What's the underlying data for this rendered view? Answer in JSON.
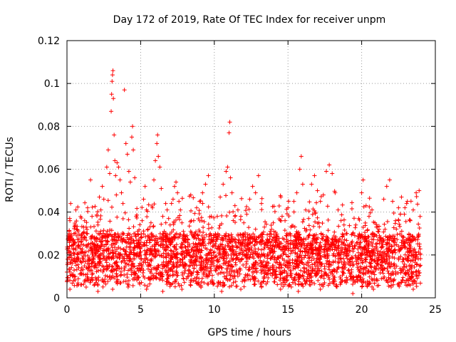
{
  "chart_data": {
    "type": "scatter",
    "title": "Day 172 of 2019, Rate Of TEC Index for receiver unpm",
    "xlabel": "GPS time / hours",
    "ylabel": "ROTI / TECUs",
    "xlim": [
      0,
      25
    ],
    "ylim": [
      0,
      0.12
    ],
    "x_ticks": [
      "0",
      "5",
      "10",
      "15",
      "20",
      "25"
    ],
    "y_ticks": [
      "0",
      "0.02",
      "0.04",
      "0.06",
      "0.08",
      "0.1",
      "0.12"
    ],
    "grid": true,
    "legend": "none",
    "marker": "plus",
    "series": [
      {
        "color": "#ff0000",
        "points": [
          [
            0.0,
            0.012
          ],
          [
            0.05,
            0.018
          ],
          [
            0.1,
            0.023
          ],
          [
            0.15,
            0.031
          ],
          [
            0.2,
            0.036
          ],
          [
            0.25,
            0.044
          ],
          [
            0.3,
            0.029
          ],
          [
            0.35,
            0.016
          ],
          [
            0.4,
            0.011
          ],
          [
            0.45,
            0.021
          ],
          [
            0.5,
            0.026
          ],
          [
            0.55,
            0.034
          ],
          [
            0.6,
            0.041
          ],
          [
            0.65,
            0.032
          ],
          [
            0.7,
            0.019
          ],
          [
            0.8,
            0.014
          ],
          [
            0.9,
            0.023
          ],
          [
            1.0,
            0.028
          ],
          [
            1.1,
            0.021
          ],
          [
            1.2,
            0.036
          ],
          [
            1.3,
            0.033
          ],
          [
            1.4,
            0.042
          ],
          [
            1.5,
            0.018
          ],
          [
            1.6,
            0.055
          ],
          [
            1.7,
            0.038
          ],
          [
            1.8,
            0.024
          ],
          [
            1.9,
            0.015
          ],
          [
            2.0,
            0.028
          ],
          [
            2.1,
            0.034
          ],
          [
            2.2,
            0.047
          ],
          [
            2.3,
            0.041
          ],
          [
            2.4,
            0.052
          ],
          [
            2.5,
            0.046
          ],
          [
            2.6,
            0.029
          ],
          [
            2.7,
            0.061
          ],
          [
            2.8,
            0.069
          ],
          [
            2.9,
            0.058
          ],
          [
            3.0,
            0.087
          ],
          [
            3.03,
            0.095
          ],
          [
            3.06,
            0.101
          ],
          [
            3.09,
            0.104
          ],
          [
            3.12,
            0.106
          ],
          [
            3.15,
            0.093
          ],
          [
            3.2,
            0.076
          ],
          [
            3.25,
            0.064
          ],
          [
            3.3,
            0.057
          ],
          [
            3.35,
            0.048
          ],
          [
            3.4,
            0.063
          ],
          [
            3.5,
            0.061
          ],
          [
            3.6,
            0.055
          ],
          [
            3.7,
            0.049
          ],
          [
            3.8,
            0.044
          ],
          [
            3.9,
            0.097
          ],
          [
            4.0,
            0.072
          ],
          [
            4.1,
            0.067
          ],
          [
            4.2,
            0.059
          ],
          [
            4.3,
            0.054
          ],
          [
            4.4,
            0.075
          ],
          [
            4.45,
            0.08
          ],
          [
            4.5,
            0.069
          ],
          [
            4.6,
            0.056
          ],
          [
            4.7,
            0.038
          ],
          [
            4.8,
            0.031
          ],
          [
            4.9,
            0.025
          ],
          [
            5.0,
            0.028
          ],
          [
            5.1,
            0.036
          ],
          [
            5.2,
            0.046
          ],
          [
            5.3,
            0.052
          ],
          [
            5.4,
            0.041
          ],
          [
            5.5,
            0.032
          ],
          [
            5.6,
            0.028
          ],
          [
            5.7,
            0.035
          ],
          [
            5.8,
            0.042
          ],
          [
            5.9,
            0.055
          ],
          [
            6.0,
            0.064
          ],
          [
            6.1,
            0.072
          ],
          [
            6.15,
            0.076
          ],
          [
            6.2,
            0.066
          ],
          [
            6.3,
            0.061
          ],
          [
            6.4,
            0.051
          ],
          [
            6.5,
            0.038
          ],
          [
            6.6,
            0.031
          ],
          [
            6.7,
            0.044
          ],
          [
            6.8,
            0.041
          ],
          [
            6.9,
            0.037
          ],
          [
            7.0,
            0.034
          ],
          [
            7.1,
            0.028
          ],
          [
            7.2,
            0.046
          ],
          [
            7.3,
            0.052
          ],
          [
            7.4,
            0.054
          ],
          [
            7.5,
            0.049
          ],
          [
            7.6,
            0.045
          ],
          [
            7.7,
            0.041
          ],
          [
            7.8,
            0.035
          ],
          [
            7.9,
            0.031
          ],
          [
            8.0,
            0.026
          ],
          [
            8.2,
            0.024
          ],
          [
            8.4,
            0.031
          ],
          [
            8.6,
            0.036
          ],
          [
            8.8,
            0.042
          ],
          [
            9.0,
            0.045
          ],
          [
            9.2,
            0.049
          ],
          [
            9.4,
            0.053
          ],
          [
            9.6,
            0.057
          ],
          [
            9.8,
            0.038
          ],
          [
            10.0,
            0.029
          ],
          [
            10.2,
            0.038
          ],
          [
            10.4,
            0.047
          ],
          [
            10.6,
            0.053
          ],
          [
            10.8,
            0.059
          ],
          [
            10.9,
            0.061
          ],
          [
            11.0,
            0.077
          ],
          [
            11.05,
            0.082
          ],
          [
            11.1,
            0.056
          ],
          [
            11.2,
            0.049
          ],
          [
            11.4,
            0.043
          ],
          [
            11.6,
            0.041
          ],
          [
            11.8,
            0.038
          ],
          [
            12.0,
            0.035
          ],
          [
            12.2,
            0.039
          ],
          [
            12.4,
            0.046
          ],
          [
            12.6,
            0.052
          ],
          [
            12.8,
            0.049
          ],
          [
            13.0,
            0.057
          ],
          [
            13.2,
            0.044
          ],
          [
            13.4,
            0.033
          ],
          [
            13.6,
            0.026
          ],
          [
            13.8,
            0.031
          ],
          [
            14.0,
            0.035
          ],
          [
            14.2,
            0.029
          ],
          [
            14.4,
            0.024
          ],
          [
            14.6,
            0.038
          ],
          [
            14.8,
            0.036
          ],
          [
            15.0,
            0.042
          ],
          [
            15.2,
            0.033
          ],
          [
            15.4,
            0.045
          ],
          [
            15.6,
            0.049
          ],
          [
            15.8,
            0.06
          ],
          [
            15.9,
            0.066
          ],
          [
            16.0,
            0.053
          ],
          [
            16.2,
            0.041
          ],
          [
            16.4,
            0.037
          ],
          [
            16.6,
            0.053
          ],
          [
            16.8,
            0.057
          ],
          [
            17.0,
            0.05
          ],
          [
            17.2,
            0.045
          ],
          [
            17.4,
            0.048
          ],
          [
            17.6,
            0.059
          ],
          [
            17.8,
            0.062
          ],
          [
            18.0,
            0.058
          ],
          [
            18.2,
            0.049
          ],
          [
            18.4,
            0.041
          ],
          [
            18.6,
            0.036
          ],
          [
            18.8,
            0.034
          ],
          [
            19.0,
            0.03
          ],
          [
            19.2,
            0.024
          ],
          [
            19.4,
            0.015
          ],
          [
            19.6,
            0.034
          ],
          [
            19.8,
            0.037
          ],
          [
            20.0,
            0.049
          ],
          [
            20.1,
            0.055
          ],
          [
            20.3,
            0.043
          ],
          [
            20.5,
            0.038
          ],
          [
            20.7,
            0.041
          ],
          [
            20.9,
            0.035
          ],
          [
            21.1,
            0.031
          ],
          [
            21.3,
            0.028
          ],
          [
            21.5,
            0.046
          ],
          [
            21.7,
            0.052
          ],
          [
            21.9,
            0.055
          ],
          [
            22.1,
            0.045
          ],
          [
            22.3,
            0.036
          ],
          [
            22.5,
            0.042
          ],
          [
            22.7,
            0.047
          ],
          [
            22.9,
            0.039
          ],
          [
            23.1,
            0.045
          ],
          [
            23.3,
            0.036
          ],
          [
            23.5,
            0.041
          ],
          [
            23.7,
            0.049
          ],
          [
            23.9,
            0.05
          ],
          [
            0.2,
            0.004
          ],
          [
            1.3,
            0.005
          ],
          [
            2.1,
            0.003
          ],
          [
            3.1,
            0.004
          ],
          [
            4.2,
            0.006
          ],
          [
            5.4,
            0.004
          ],
          [
            6.5,
            0.003
          ],
          [
            7.8,
            0.004
          ],
          [
            9.1,
            0.005
          ],
          [
            10.5,
            0.003
          ],
          [
            11.8,
            0.004
          ],
          [
            13.2,
            0.005
          ],
          [
            14.5,
            0.004
          ],
          [
            15.7,
            0.003
          ],
          [
            17.2,
            0.004
          ],
          [
            18.3,
            0.006
          ],
          [
            19.4,
            0.002
          ],
          [
            20.8,
            0.004
          ],
          [
            22.0,
            0.005
          ],
          [
            23.5,
            0.004
          ]
        ]
      }
    ],
    "dense_band": {
      "x_range": [
        0,
        24
      ],
      "y_range": [
        0.005,
        0.03
      ],
      "notes": "dense cloud of plus markers between about 0.005 and 0.03 TECU/s"
    }
  }
}
